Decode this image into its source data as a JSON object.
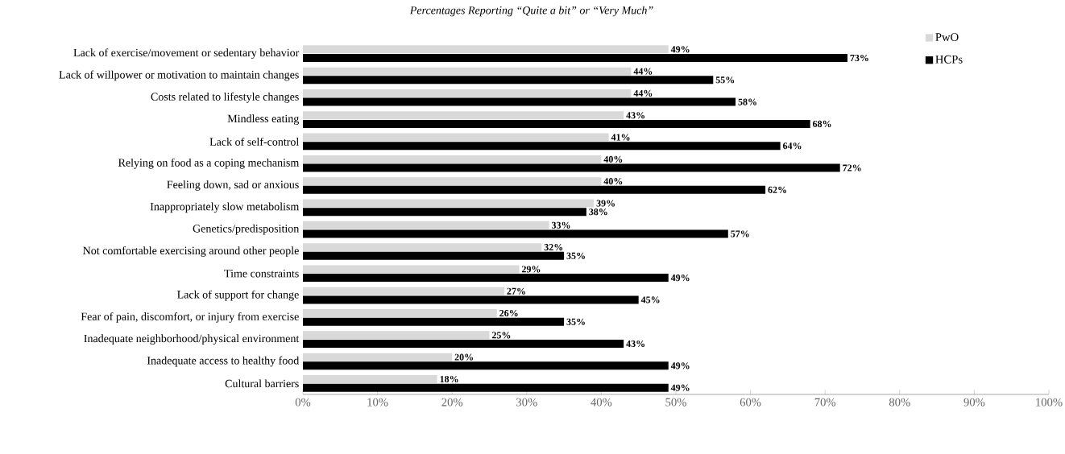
{
  "chart_data": {
    "type": "bar",
    "orientation": "horizontal",
    "title": "Percentages Reporting “Quite a bit” or “Very Much”",
    "categories": [
      "Lack of exercise/movement or sedentary behavior",
      "Lack of willpower or motivation to maintain changes",
      "Costs related to lifestyle changes",
      "Mindless eating",
      "Lack of self-control",
      "Relying on food as a coping mechanism",
      "Feeling down, sad or anxious",
      "Inappropriately slow metabolism",
      "Genetics/predisposition",
      "Not comfortable exercising around other people",
      "Time constraints",
      "Lack of support for change",
      "Fear of pain, discomfort, or injury from exercise",
      "Inadequate neighborhood/physical environment",
      "Inadequate access to healthy food",
      "Cultural barriers"
    ],
    "series": [
      {
        "name": "PwO",
        "color": "#d9d9d9",
        "values": [
          49,
          44,
          44,
          43,
          41,
          40,
          40,
          39,
          33,
          32,
          29,
          27,
          26,
          25,
          20,
          18
        ],
        "value_labels": [
          "49%",
          "44%",
          "44%",
          "43%",
          "41%",
          "40%",
          "40%",
          "39%",
          "33%",
          "32%",
          "29%",
          "27%",
          "26%",
          "25%",
          "20%",
          "18%"
        ]
      },
      {
        "name": "HCPs",
        "color": "#000000",
        "values": [
          73,
          55,
          58,
          68,
          64,
          72,
          62,
          38,
          57,
          35,
          49,
          45,
          35,
          43,
          49,
          49
        ],
        "value_labels": [
          "73%",
          "55%",
          "58%",
          "68%",
          "64%",
          "72%",
          "62%",
          "38%",
          "57%",
          "35%",
          "49%",
          "45%",
          "35%",
          "43%",
          "49%",
          "49%"
        ]
      }
    ],
    "xlim": [
      0,
      100
    ],
    "xticks": [
      {
        "value": 0,
        "label": "0%"
      },
      {
        "value": 10,
        "label": "10%"
      },
      {
        "value": 20,
        "label": "20%"
      },
      {
        "value": 30,
        "label": "30%"
      },
      {
        "value": 40,
        "label": "40%"
      },
      {
        "value": 50,
        "label": "50%"
      },
      {
        "value": 60,
        "label": "60%"
      },
      {
        "value": 70,
        "label": "70%"
      },
      {
        "value": 80,
        "label": "80%"
      },
      {
        "value": 90,
        "label": "90%"
      },
      {
        "value": 100,
        "label": "100%"
      }
    ],
    "legend": "top right",
    "grid": false
  }
}
